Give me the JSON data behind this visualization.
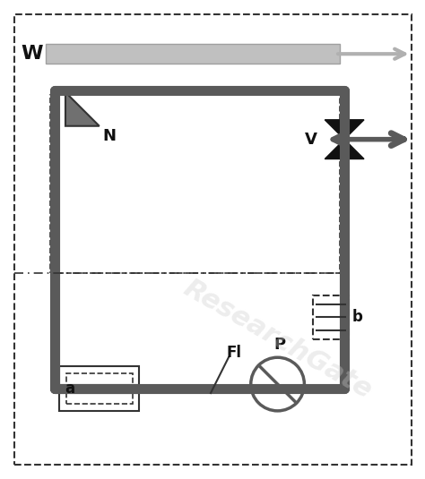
{
  "bg_color": "#ffffff",
  "pipe_color": "#5a5a5a",
  "pipe_lw": 8,
  "dashed_color": "#333333",
  "valve_color": "#111111",
  "arrow_color": "#5a5a5a",
  "w_bar_color": "#c8c8c8",
  "pump_color": "#5a5a5a",
  "label_N": "N",
  "label_V": "V",
  "label_W": "W",
  "label_a": "a",
  "label_b": "b",
  "label_Fl": "Fl",
  "label_P": "P",
  "figsize": [
    4.74,
    5.35
  ],
  "dpi": 100
}
